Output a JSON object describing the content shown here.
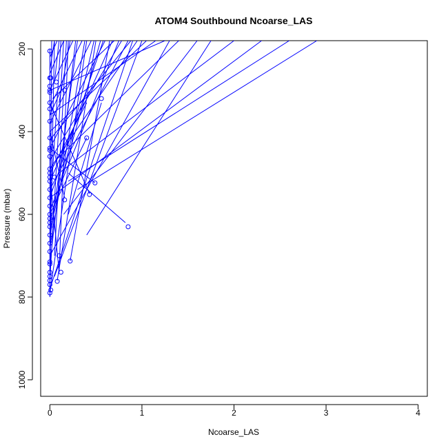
{
  "chart_data": {
    "type": "line",
    "title": "ATOM4 Southbound Ncoarse_LAS",
    "xlabel": "Ncoarse_LAS",
    "ylabel": "Pressure (mbar)",
    "xlim": [
      -0.1,
      4.1
    ],
    "ylim": [
      1040,
      180
    ],
    "y_reversed": true,
    "x_ticks": [
      0,
      1,
      2,
      3,
      4
    ],
    "y_ticks": [
      200,
      400,
      600,
      800,
      1000
    ],
    "grid": false,
    "series_color": "#0000ff",
    "segments": [
      [
        [
          0.03,
          320
        ],
        [
          0.7,
          180
        ]
      ],
      [
        [
          0.0,
          400
        ],
        [
          1.05,
          180
        ]
      ],
      [
        [
          0.06,
          470
        ],
        [
          1.4,
          180
        ]
      ],
      [
        [
          0.1,
          500
        ],
        [
          2.0,
          180
        ]
      ],
      [
        [
          0.2,
          520
        ],
        [
          2.6,
          180
        ]
      ],
      [
        [
          0.3,
          540
        ],
        [
          2.9,
          180
        ]
      ],
      [
        [
          0.0,
          560
        ],
        [
          2.3,
          180
        ]
      ],
      [
        [
          0.15,
          600
        ],
        [
          1.6,
          180
        ]
      ],
      [
        [
          0.4,
          650
        ],
        [
          1.75,
          180
        ]
      ],
      [
        [
          0.0,
          700
        ],
        [
          1.3,
          180
        ]
      ],
      [
        [
          0.05,
          750
        ],
        [
          1.0,
          180
        ]
      ],
      [
        [
          0.0,
          780
        ],
        [
          0.9,
          180
        ]
      ],
      [
        [
          0.22,
          713
        ],
        [
          0.65,
          180
        ]
      ],
      [
        [
          0.0,
          790
        ],
        [
          0.4,
          180
        ]
      ],
      [
        [
          0.08,
          760
        ],
        [
          0.5,
          180
        ]
      ],
      [
        [
          0.1,
          740
        ],
        [
          0.2,
          180
        ]
      ],
      [
        [
          0.0,
          660
        ],
        [
          0.3,
          180
        ]
      ],
      [
        [
          0.0,
          620
        ],
        [
          0.55,
          180
        ]
      ],
      [
        [
          0.02,
          580
        ],
        [
          0.75,
          180
        ]
      ],
      [
        [
          0.0,
          540
        ],
        [
          0.85,
          180
        ]
      ],
      [
        [
          0.0,
          490
        ],
        [
          0.95,
          180
        ]
      ],
      [
        [
          0.0,
          440
        ],
        [
          0.6,
          180
        ]
      ],
      [
        [
          0.0,
          380
        ],
        [
          0.45,
          180
        ]
      ],
      [
        [
          0.0,
          340
        ],
        [
          0.35,
          180
        ]
      ],
      [
        [
          0.0,
          300
        ],
        [
          0.25,
          180
        ]
      ],
      [
        [
          0.0,
          260
        ],
        [
          0.15,
          180
        ]
      ],
      [
        [
          0.0,
          220
        ],
        [
          0.08,
          180
        ]
      ],
      [
        [
          0.0,
          600
        ],
        [
          0.12,
          180
        ]
      ],
      [
        [
          0.05,
          700
        ],
        [
          0.18,
          180
        ]
      ],
      [
        [
          0.0,
          720
        ],
        [
          0.28,
          180
        ]
      ],
      [
        [
          0.0,
          680
        ],
        [
          0.38,
          180
        ]
      ],
      [
        [
          0.0,
          640
        ],
        [
          0.48,
          180
        ]
      ],
      [
        [
          0.0,
          560
        ],
        [
          0.58,
          180
        ]
      ],
      [
        [
          0.0,
          520
        ],
        [
          0.68,
          180
        ]
      ],
      [
        [
          0.0,
          470
        ],
        [
          0.78,
          180
        ]
      ],
      [
        [
          0.0,
          420
        ],
        [
          0.88,
          180
        ]
      ],
      [
        [
          0.0,
          360
        ],
        [
          1.15,
          180
        ]
      ],
      [
        [
          0.0,
          300
        ],
        [
          1.25,
          180
        ]
      ],
      [
        [
          0.0,
          250
        ],
        [
          0.05,
          180
        ]
      ],
      [
        [
          0.05,
          280
        ],
        [
          0.1,
          180
        ]
      ],
      [
        [
          0.1,
          330
        ],
        [
          0.22,
          180
        ]
      ],
      [
        [
          0.0,
          740
        ],
        [
          0.05,
          180
        ]
      ],
      [
        [
          0.0,
          800
        ],
        [
          0.02,
          180
        ]
      ],
      [
        [
          0.0,
          760
        ],
        [
          0.15,
          180
        ]
      ],
      [
        [
          0.0,
          500
        ],
        [
          0.4,
          330
        ]
      ],
      [
        [
          0.56,
          330
        ],
        [
          0.2,
          600
        ]
      ],
      [
        [
          0.2,
          500
        ],
        [
          0.82,
          620
        ]
      ],
      [
        [
          0.43,
          550
        ],
        [
          0.0,
          330
        ]
      ],
      [
        [
          0.4,
          415
        ],
        [
          0.0,
          600
        ]
      ],
      [
        [
          0.49,
          524
        ],
        [
          0.0,
          440
        ]
      ],
      [
        [
          0.16,
          560
        ],
        [
          0.0,
          400
        ]
      ],
      [
        [
          0.1,
          740
        ],
        [
          0.0,
          500
        ]
      ],
      [
        [
          0.12,
          300
        ],
        [
          0.0,
          360
        ]
      ],
      [
        [
          0.0,
          200
        ],
        [
          0.0,
          790
        ]
      ]
    ],
    "points": [
      [
        0.0,
        205
      ],
      [
        0.0,
        270
      ],
      [
        0.01,
        270
      ],
      [
        0.0,
        290
      ],
      [
        0.0,
        300
      ],
      [
        0.0,
        305
      ],
      [
        0.0,
        330
      ],
      [
        0.0,
        345
      ],
      [
        0.0,
        375
      ],
      [
        0.0,
        415
      ],
      [
        0.0,
        440
      ],
      [
        0.0,
        445
      ],
      [
        0.0,
        460
      ],
      [
        0.0,
        490
      ],
      [
        0.0,
        500
      ],
      [
        0.0,
        510
      ],
      [
        0.0,
        520
      ],
      [
        0.0,
        540
      ],
      [
        0.0,
        560
      ],
      [
        0.0,
        580
      ],
      [
        0.0,
        600
      ],
      [
        0.0,
        610
      ],
      [
        0.0,
        620
      ],
      [
        0.0,
        630
      ],
      [
        0.0,
        650
      ],
      [
        0.0,
        670
      ],
      [
        0.0,
        690
      ],
      [
        0.0,
        715
      ],
      [
        0.0,
        720
      ],
      [
        0.0,
        740
      ],
      [
        0.0,
        750
      ],
      [
        0.0,
        760
      ],
      [
        0.0,
        770
      ],
      [
        0.0,
        790
      ],
      [
        0.01,
        783
      ],
      [
        0.05,
        510
      ],
      [
        0.07,
        280
      ],
      [
        0.08,
        762
      ],
      [
        0.1,
        700
      ],
      [
        0.12,
        740
      ],
      [
        0.16,
        300
      ],
      [
        0.16,
        565
      ],
      [
        0.22,
        713
      ],
      [
        0.4,
        415
      ],
      [
        0.43,
        552
      ],
      [
        0.49,
        524
      ],
      [
        0.56,
        320
      ],
      [
        0.85,
        630
      ]
    ]
  }
}
